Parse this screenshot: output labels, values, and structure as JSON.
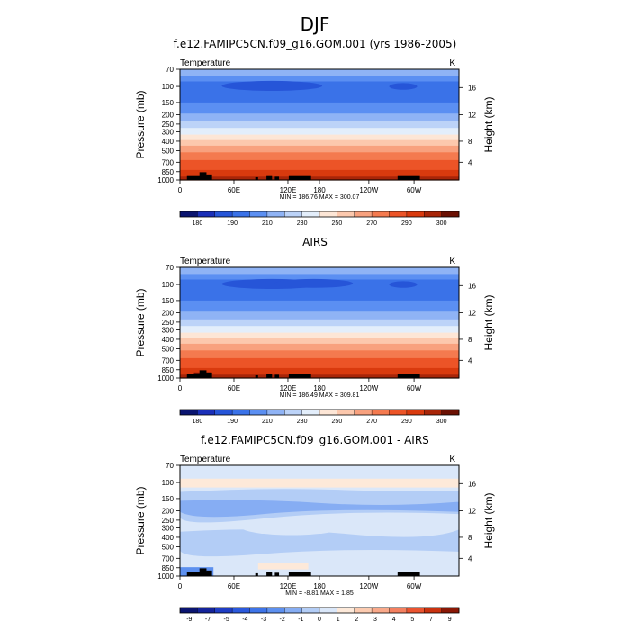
{
  "figure": {
    "title": "DJF"
  },
  "chart_data": [
    {
      "type": "heatmap",
      "title": "f.e12.FAMIPC5CN.f09_g16.GOM.001 (yrs 1986-2005)",
      "variable": "Temperature",
      "units": "K",
      "xlabel": "",
      "ylabel": "Pressure (mb)",
      "ylabel_right": "Height (km)",
      "x_ticks": [
        "0",
        "60E",
        "120E",
        "180",
        "120W",
        "60W"
      ],
      "y_ticks": [
        "70",
        "100",
        "150",
        "200",
        "250",
        "300",
        "400",
        "500",
        "700",
        "850",
        "1000"
      ],
      "y_right_ticks": [
        "16",
        "12",
        "8",
        "4"
      ],
      "stats": "MIN = 186.76  MAX = 300.07",
      "colorbar_ticks": [
        "180",
        "190",
        "210",
        "230",
        "250",
        "270",
        "290",
        "300"
      ],
      "range": [
        186.76,
        300.07
      ]
    },
    {
      "type": "heatmap",
      "title": "AIRS",
      "variable": "Temperature",
      "units": "K",
      "xlabel": "",
      "ylabel": "Pressure (mb)",
      "ylabel_right": "Height (km)",
      "x_ticks": [
        "0",
        "60E",
        "120E",
        "180",
        "120W",
        "60W"
      ],
      "y_ticks": [
        "70",
        "100",
        "150",
        "200",
        "250",
        "300",
        "400",
        "500",
        "700",
        "850",
        "1000"
      ],
      "y_right_ticks": [
        "16",
        "12",
        "8",
        "4"
      ],
      "stats": "MIN = 186.49  MAX = 309.81",
      "colorbar_ticks": [
        "180",
        "190",
        "210",
        "230",
        "250",
        "270",
        "290",
        "300"
      ],
      "range": [
        186.49,
        309.81
      ]
    },
    {
      "type": "heatmap",
      "title": "f.e12.FAMIPC5CN.f09_g16.GOM.001 - AIRS",
      "variable": "Temperature",
      "units": "K",
      "xlabel": "",
      "ylabel": "Pressure (mb)",
      "ylabel_right": "Height (km)",
      "x_ticks": [
        "0",
        "60E",
        "120E",
        "180",
        "120W",
        "60W"
      ],
      "y_ticks": [
        "70",
        "100",
        "150",
        "200",
        "250",
        "300",
        "400",
        "500",
        "700",
        "850",
        "1000"
      ],
      "y_right_ticks": [
        "16",
        "12",
        "8",
        "4"
      ],
      "stats": "MIN = -8.81  MAX =  1.85",
      "colorbar_ticks": [
        "-9",
        "-7",
        "-5",
        "-4",
        "-3",
        "-2",
        "-1",
        "0",
        "1",
        "2",
        "3",
        "4",
        "5",
        "7",
        "9"
      ],
      "range": [
        -8.81,
        1.85
      ]
    }
  ],
  "colors": {
    "abs_scale": [
      "#0a1470",
      "#1a2fb8",
      "#2655d8",
      "#3a72e8",
      "#5b8ff2",
      "#8fb3f5",
      "#bcd3f8",
      "#e3eefb",
      "#fde6d6",
      "#fcc8ad",
      "#f8a17e",
      "#f47a4f",
      "#ec5427",
      "#d93a0e",
      "#a82508",
      "#6b1003"
    ],
    "diff_scale": [
      "#0a1470",
      "#14239a",
      "#1f3dc4",
      "#2b59dc",
      "#3e74e8",
      "#5d90ef",
      "#86adf3",
      "#b3cdf6",
      "#dae7f9",
      "#fde9d9",
      "#fccbb0",
      "#f9a98a",
      "#f48060",
      "#ea5430",
      "#c9320f",
      "#8a1705"
    ],
    "topography": "#000000"
  }
}
